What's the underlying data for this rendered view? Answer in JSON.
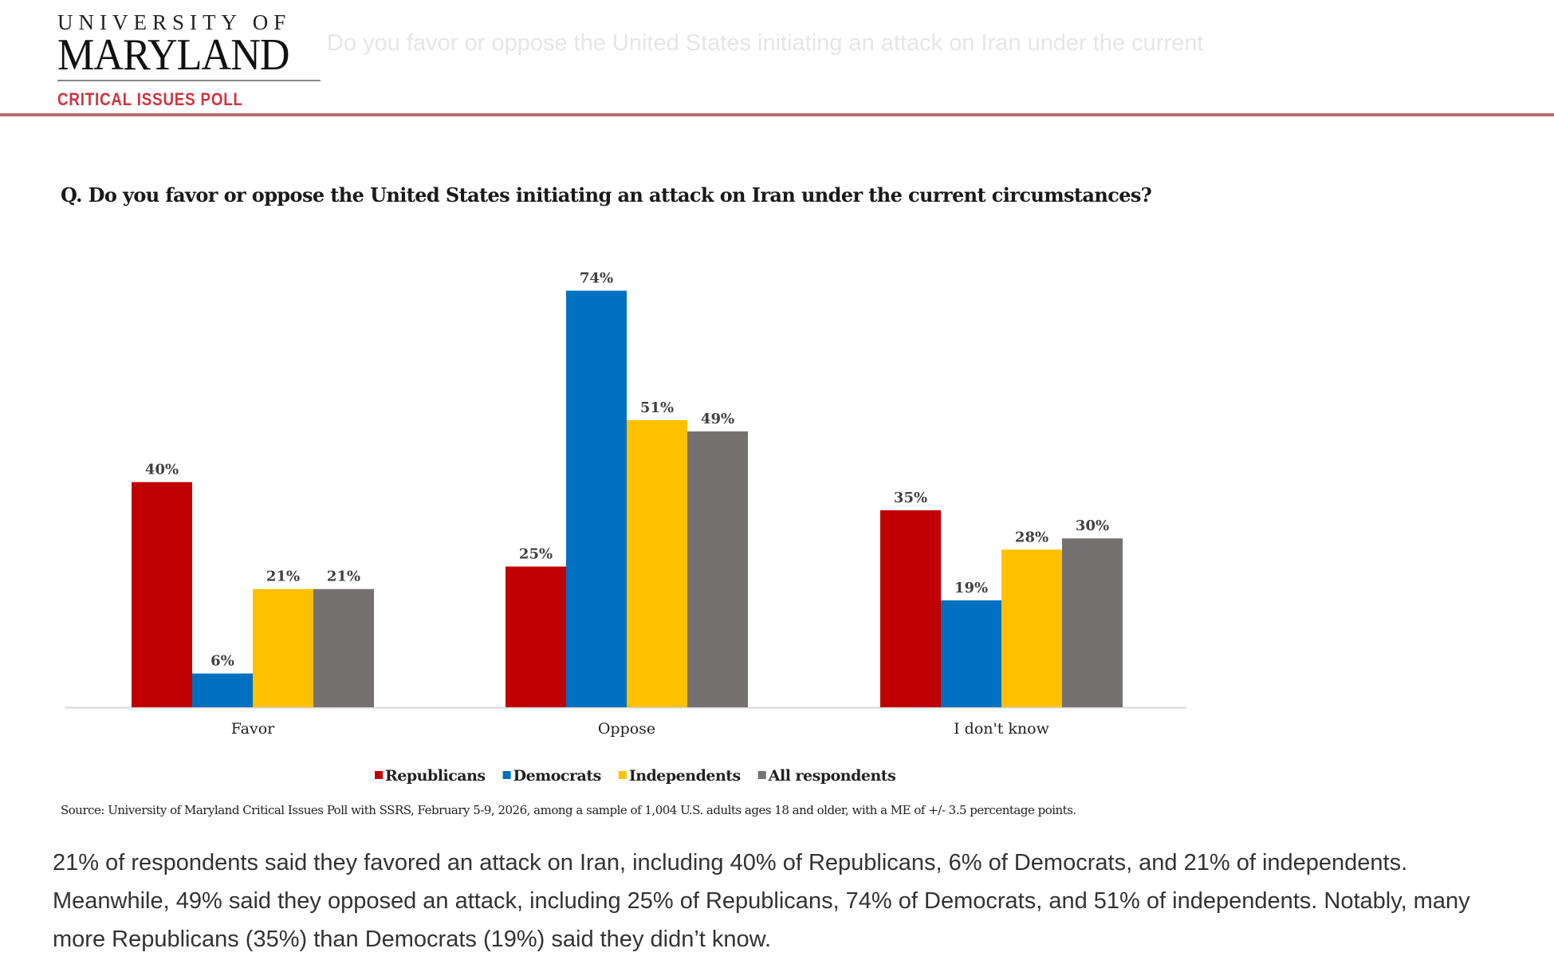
{
  "header": {
    "logo_line1": "UNIVERSITY OF",
    "logo_line2": "MARYLAND",
    "logo_line3": "CRITICAL ISSUES POLL",
    "ghost_title": "Do you favor or oppose the United States initiating an attack on Iran under the current"
  },
  "chart_data": {
    "type": "bar",
    "title": "Q. Do you favor or oppose the United States initiating an attack on Iran under the current circumstances?",
    "categories": [
      "Favor",
      "Oppose",
      "I don't know"
    ],
    "series": [
      {
        "name": "Republicans",
        "color": "#c00000",
        "values": [
          40,
          25,
          35
        ]
      },
      {
        "name": "Democrats",
        "color": "#0070c0",
        "values": [
          6,
          74,
          19
        ]
      },
      {
        "name": "Independents",
        "color": "#ffc000",
        "values": [
          21,
          51,
          28
        ]
      },
      {
        "name": "All respondents",
        "color": "#767171",
        "values": [
          21,
          49,
          30
        ]
      }
    ],
    "value_suffix": "%",
    "ylim": [
      0,
      80
    ],
    "grid": false,
    "legend": "bottom-center",
    "source": "Source: University of Maryland Critical Issues Poll with SSRS, February 5-9, 2026, among a sample of 1,004 U.S. adults ages 18 and older, with a ME of +/- 3.5 percentage points."
  },
  "body_text": "21% of respondents said they favored an attack on Iran, including 40% of Republicans, 6% of Democrats, and 21% of independents. Meanwhile, 49% said they opposed an attack, including 25% of Republicans, 74% of Democrats, and 51% of independents. Notably, many more Republicans (35%) than Democrats (19%) said they didn’t know."
}
